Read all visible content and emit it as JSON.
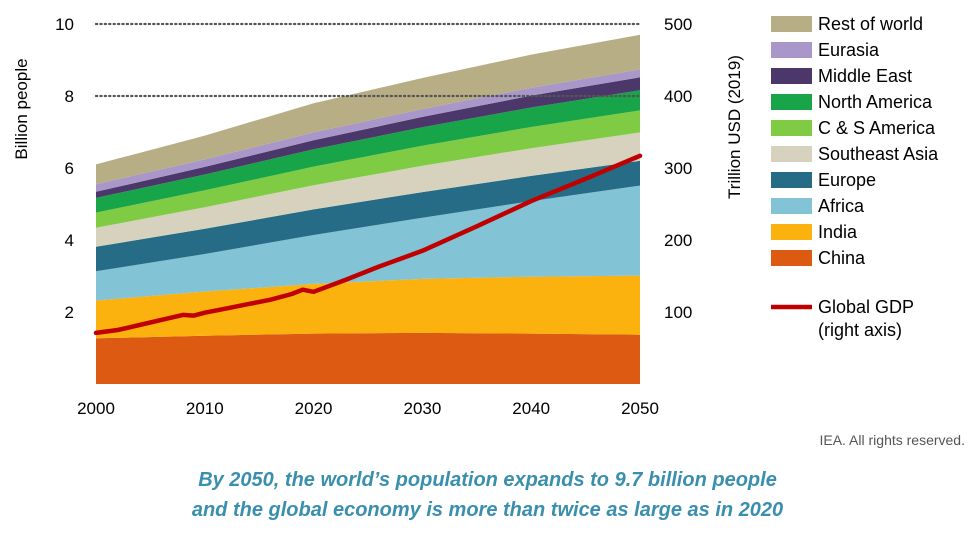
{
  "chart_data": {
    "type": "area",
    "x": [
      2000,
      2010,
      2020,
      2030,
      2040,
      2050
    ],
    "x_ticks": [
      "2000",
      "2010",
      "2020",
      "2030",
      "2040",
      "2050"
    ],
    "ylabel": "Billion people",
    "y2label": "Trillion USD (2019)",
    "ylim": [
      0,
      10
    ],
    "y_ticks": [
      "2",
      "4",
      "6",
      "8",
      "10"
    ],
    "y2lim": [
      0,
      500
    ],
    "y2_ticks": [
      "100",
      "200",
      "300",
      "400",
      "500"
    ],
    "gridlines_dotted_at": [
      8,
      10
    ],
    "stacked_series": [
      {
        "name": "China",
        "color": "#DD5A12",
        "values": [
          1.27,
          1.34,
          1.4,
          1.42,
          1.4,
          1.37
        ]
      },
      {
        "name": "India",
        "color": "#FBB20F",
        "values": [
          1.05,
          1.23,
          1.38,
          1.5,
          1.58,
          1.64
        ]
      },
      {
        "name": "Africa",
        "color": "#82C3D6",
        "values": [
          0.81,
          1.04,
          1.36,
          1.7,
          2.1,
          2.5
        ]
      },
      {
        "name": "Europe",
        "color": "#276C86",
        "values": [
          0.68,
          0.7,
          0.71,
          0.71,
          0.7,
          0.69
        ]
      },
      {
        "name": "Southeast Asia",
        "color": "#D6D2BE",
        "values": [
          0.53,
          0.6,
          0.67,
          0.73,
          0.77,
          0.79
        ]
      },
      {
        "name": "C & S America",
        "color": "#7FCB44",
        "values": [
          0.42,
          0.47,
          0.52,
          0.56,
          0.59,
          0.61
        ]
      },
      {
        "name": "North America",
        "color": "#18A449",
        "values": [
          0.41,
          0.44,
          0.48,
          0.51,
          0.54,
          0.56
        ]
      },
      {
        "name": "Middle East",
        "color": "#4B3769",
        "values": [
          0.17,
          0.21,
          0.25,
          0.29,
          0.33,
          0.36
        ]
      },
      {
        "name": "Eurasia",
        "color": "#A897C8",
        "values": [
          0.21,
          0.21,
          0.22,
          0.22,
          0.22,
          0.22
        ]
      },
      {
        "name": "Rest of world",
        "color": "#B7AE86",
        "values": [
          0.55,
          0.66,
          0.81,
          0.86,
          0.92,
          0.96
        ]
      }
    ],
    "line_series": {
      "name": "Global GDP\n(right axis)",
      "axis": "right",
      "color": "#C00000",
      "x": [
        2000,
        2002,
        2004,
        2006,
        2008,
        2009,
        2010,
        2012,
        2014,
        2016,
        2018,
        2019,
        2020,
        2023,
        2026,
        2030,
        2035,
        2040,
        2045,
        2050
      ],
      "values": [
        71,
        75,
        82,
        89,
        96,
        95,
        99,
        105,
        111,
        117,
        125,
        131,
        128,
        145,
        163,
        185,
        219,
        254,
        285,
        317
      ]
    },
    "legend": {
      "placement": "right",
      "items": [
        "Rest of world",
        "Eurasia",
        "Middle East",
        "North America",
        "C & S America",
        "Southeast Asia",
        "Europe",
        "Africa",
        "India",
        "China"
      ],
      "line_item": "Global GDP\n(right axis)"
    }
  },
  "credit": "IEA. All rights reserved.",
  "caption": {
    "line1": "By 2050, the world’s population expands to 9.7 billion people",
    "line2": "and the global economy is more than twice as large as in 2020"
  }
}
